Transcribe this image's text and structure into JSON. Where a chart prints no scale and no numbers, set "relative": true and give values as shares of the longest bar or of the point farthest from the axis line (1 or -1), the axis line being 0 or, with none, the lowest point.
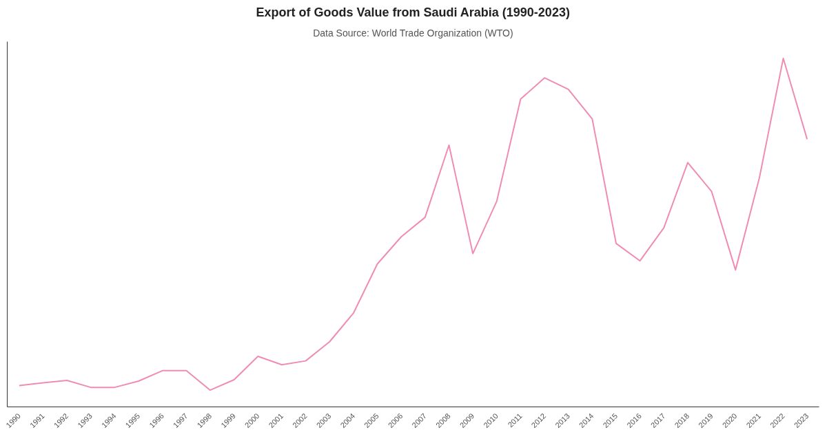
{
  "chart_data": {
    "type": "line",
    "title": "Export of Goods Value from Saudi Arabia (1990-2023)",
    "subtitle": "Data Source: World Trade Organization (WTO)",
    "relative": true,
    "grid": false,
    "marker": "none",
    "line_style": "solid",
    "categories": [
      "1990",
      "1991",
      "1992",
      "1993",
      "1994",
      "1995",
      "1996",
      "1997",
      "1998",
      "1999",
      "2000",
      "2001",
      "2002",
      "2003",
      "2004",
      "2005",
      "2006",
      "2007",
      "2008",
      "2009",
      "2010",
      "2011",
      "2012",
      "2013",
      "2014",
      "2015",
      "2016",
      "2017",
      "2018",
      "2019",
      "2020",
      "2021",
      "2022",
      "2023"
    ],
    "series": [
      {
        "color": "#f08cb4",
        "values": [
          0.061,
          0.069,
          0.076,
          0.056,
          0.056,
          0.074,
          0.104,
          0.104,
          0.048,
          0.078,
          0.145,
          0.121,
          0.132,
          0.187,
          0.269,
          0.41,
          0.488,
          0.544,
          0.751,
          0.44,
          0.59,
          0.883,
          0.944,
          0.911,
          0.826,
          0.469,
          0.419,
          0.514,
          0.701,
          0.618,
          0.393,
          0.657,
          1,
          0.768
        ]
      }
    ]
  }
}
